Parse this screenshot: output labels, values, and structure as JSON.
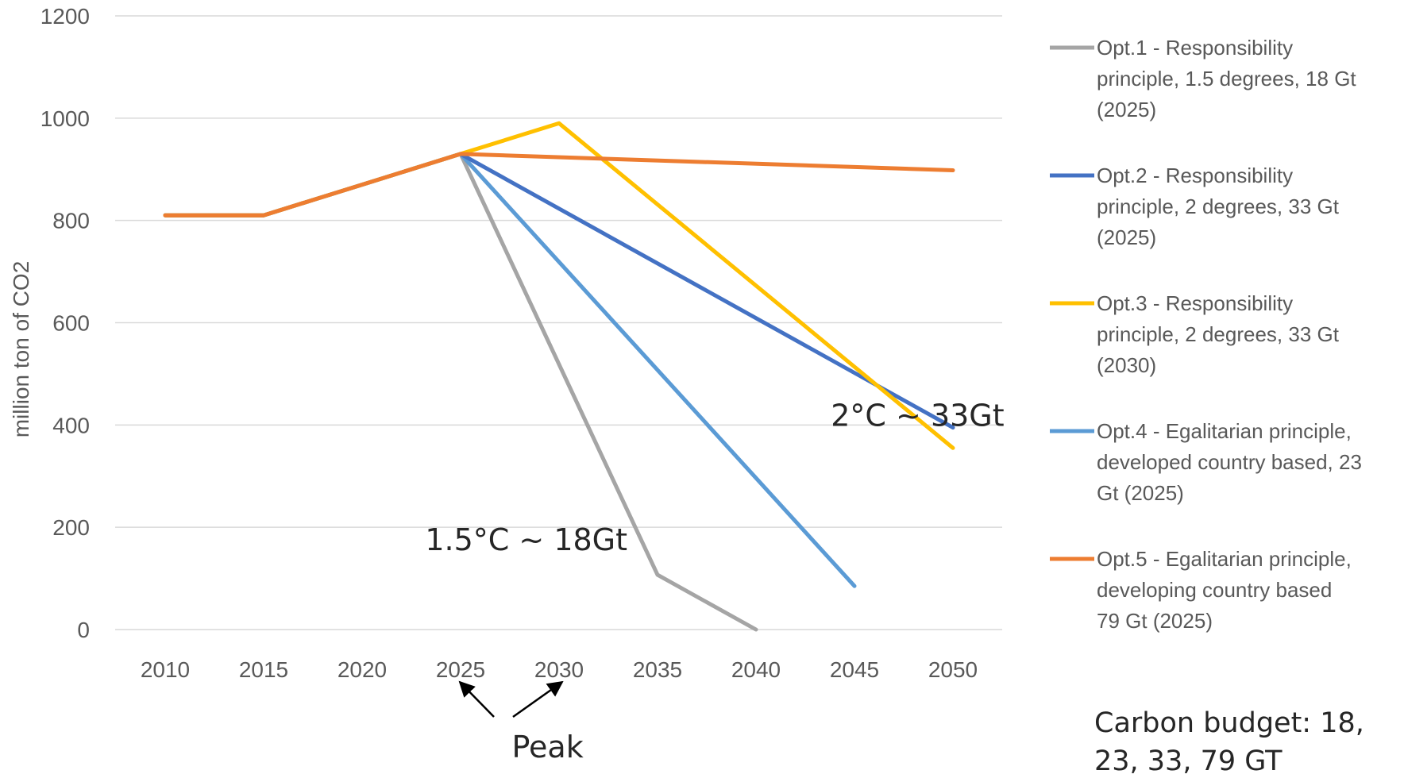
{
  "chart_data": {
    "type": "line",
    "title": "",
    "xlabel": "",
    "ylabel": "million ton  of CO2",
    "x": [
      "2010",
      "2015",
      "2020",
      "2025",
      "2030",
      "2035",
      "2040",
      "2045",
      "2050"
    ],
    "ylim": [
      0,
      1200
    ],
    "yticks": [
      0,
      200,
      400,
      600,
      800,
      1000,
      1200
    ],
    "grid": "horizontal",
    "legend_position": "right",
    "series": [
      {
        "name": "Opt.1 - Responsibility principle, 1.5 degrees, 18 Gt (2025)",
        "legend_lines": [
          "Opt.1 - Responsibility",
          "principle, 1.5 degrees, 18 Gt",
          "(2025)"
        ],
        "color": "#a5a5a5",
        "points": [
          [
            2010,
            810
          ],
          [
            2015,
            810
          ],
          [
            2020,
            870
          ],
          [
            2025,
            930
          ],
          [
            2035,
            107
          ],
          [
            2040,
            0
          ]
        ]
      },
      {
        "name": "Opt.2 - Responsibility principle, 2 degrees, 33 Gt (2025)",
        "legend_lines": [
          "Opt.2 - Responsibility",
          "principle, 2 degrees, 33 Gt",
          "(2025)"
        ],
        "color": "#4472c4",
        "points": [
          [
            2010,
            810
          ],
          [
            2015,
            810
          ],
          [
            2020,
            870
          ],
          [
            2025,
            930
          ],
          [
            2050,
            395
          ]
        ]
      },
      {
        "name": "Opt.3 - Responsibility principle, 2 degrees, 33 Gt (2030)",
        "legend_lines": [
          "Opt.3 - Responsibility",
          "principle, 2 degrees, 33 Gt",
          "(2030)"
        ],
        "color": "#ffc000",
        "points": [
          [
            2010,
            810
          ],
          [
            2015,
            810
          ],
          [
            2020,
            870
          ],
          [
            2025,
            930
          ],
          [
            2030,
            990
          ],
          [
            2050,
            355
          ]
        ]
      },
      {
        "name": "Opt.4 - Egalitarian principle, developed country based, 23 Gt (2025)",
        "legend_lines": [
          "Opt.4 - Egalitarian principle,",
          "developed country based, 23",
          "Gt (2025)"
        ],
        "color": "#5b9bd5",
        "points": [
          [
            2010,
            810
          ],
          [
            2015,
            810
          ],
          [
            2020,
            870
          ],
          [
            2025,
            930
          ],
          [
            2045,
            85
          ]
        ]
      },
      {
        "name": "Opt.5 - Egalitarian principle, developing  country based 79 Gt (2025)",
        "legend_lines": [
          "Opt.5 - Egalitarian principle,",
          "developing  country based",
          "79 Gt (2025)"
        ],
        "color": "#ed7d31",
        "points": [
          [
            2010,
            810
          ],
          [
            2015,
            810
          ],
          [
            2020,
            870
          ],
          [
            2025,
            930
          ],
          [
            2050,
            898
          ]
        ]
      }
    ],
    "annotations": [
      {
        "text": "1.5°C ~ 18Gt",
        "at": [
          2023.2,
          155
        ]
      },
      {
        "text": "2°C ~ 33Gt",
        "at": [
          2043.8,
          398
        ]
      },
      {
        "text": "Peak",
        "at": [
          2027.6,
          -250
        ]
      }
    ],
    "peak_arrows_point_to": [
      "2025",
      "2030"
    ],
    "note_lines": [
      "Carbon budget: 18,",
      "23, 33, 79 GT"
    ]
  }
}
